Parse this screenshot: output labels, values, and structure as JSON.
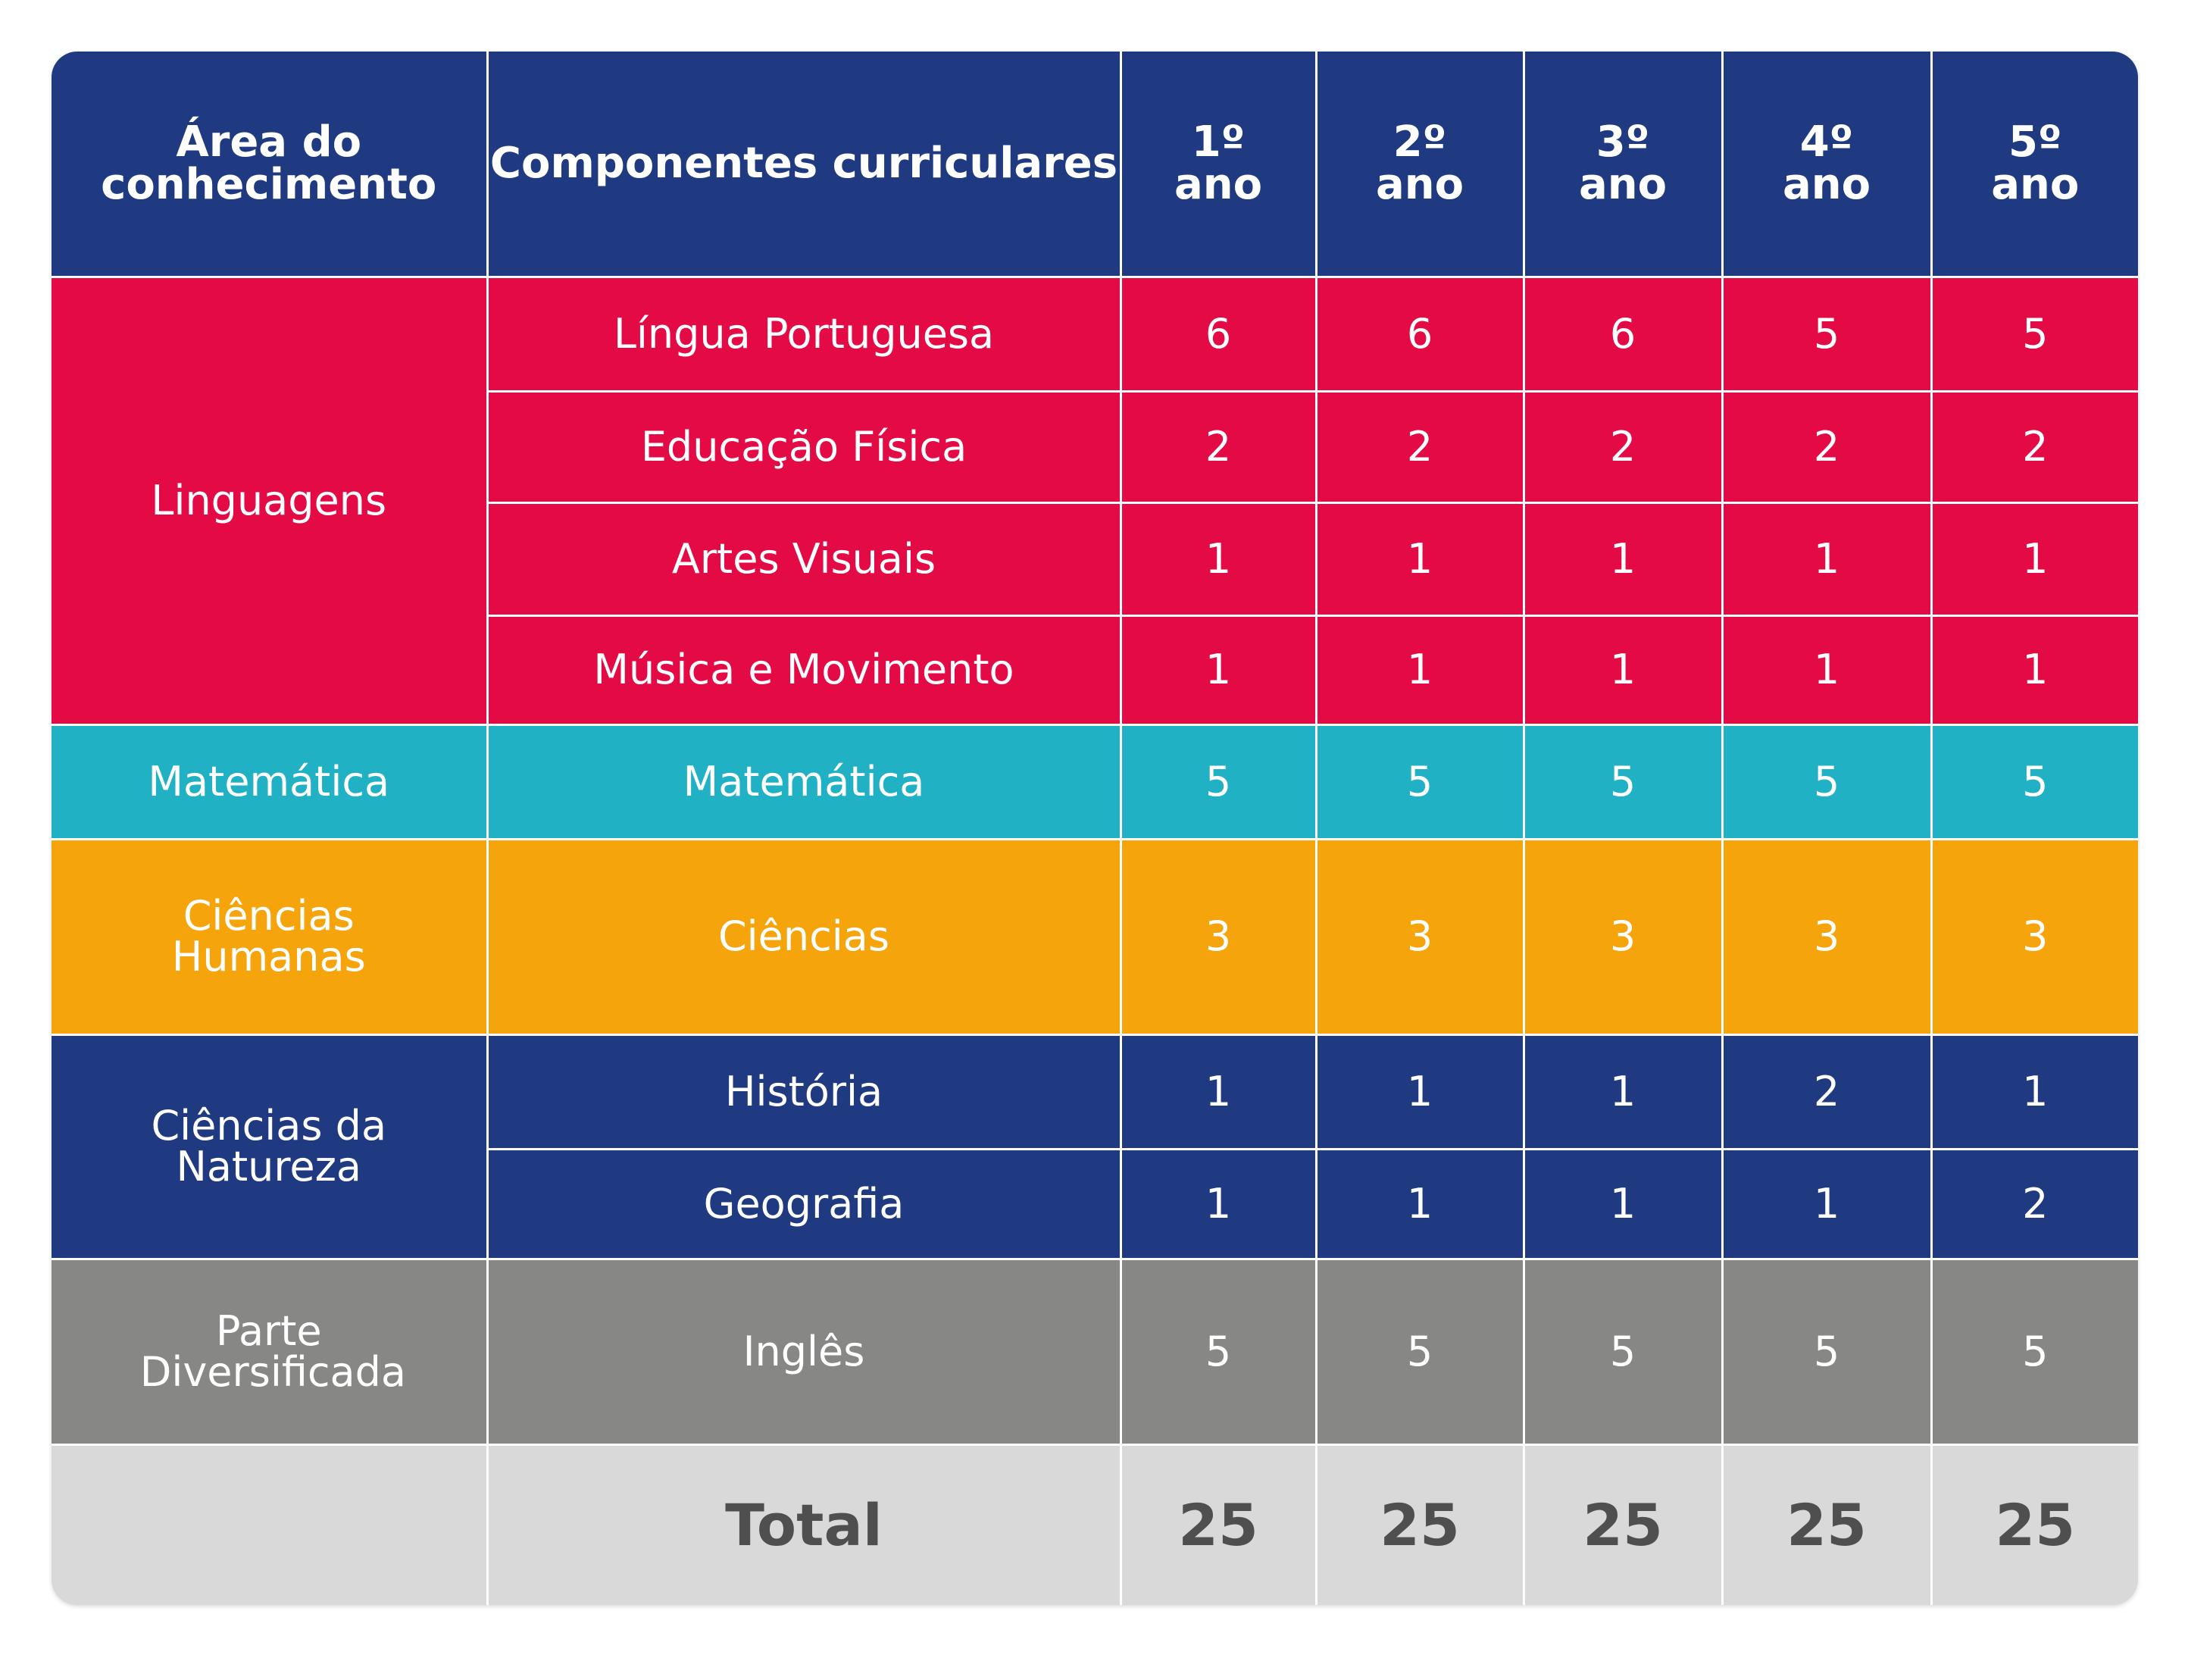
{
  "table": {
    "header": [
      "Área do conhecimento",
      "Componentes curriculares",
      "1º ano",
      "2º ano",
      "3º ano",
      "4º ano",
      "5º ano"
    ],
    "header_color": "#1f3a80",
    "groups": [
      {
        "area": "Linguagens",
        "color": "#e30a45",
        "rows": [
          {
            "component": "Língua Portuguesa",
            "values": [
              6,
              6,
              6,
              5,
              5
            ]
          },
          {
            "component": "Educação Física",
            "values": [
              2,
              2,
              2,
              2,
              2
            ]
          },
          {
            "component": "Artes Visuais",
            "values": [
              1,
              1,
              1,
              1,
              1
            ]
          },
          {
            "component": "Música e Movimento",
            "values": [
              1,
              1,
              1,
              1,
              1
            ]
          }
        ]
      },
      {
        "area": "Matemática",
        "color": "#21b1c5",
        "rows": [
          {
            "component": "Matemática",
            "values": [
              5,
              5,
              5,
              5,
              5
            ]
          }
        ]
      },
      {
        "area": "Ciências Humanas",
        "color": "#f5a40c",
        "rows": [
          {
            "component": "Ciências",
            "values": [
              3,
              3,
              3,
              3,
              3
            ]
          }
        ]
      },
      {
        "area": "Ciências da Natureza",
        "color": "#1f3a80",
        "rows": [
          {
            "component": "História",
            "values": [
              1,
              1,
              1,
              2,
              1
            ]
          },
          {
            "component": "Geografia",
            "values": [
              1,
              1,
              1,
              1,
              2
            ]
          }
        ]
      },
      {
        "area": "Parte Diversificada",
        "color": "#878786",
        "rows": [
          {
            "component": "Inglês",
            "values": [
              5,
              5,
              5,
              5,
              5
            ]
          }
        ]
      }
    ],
    "total": {
      "label": "Total",
      "color": "#d9d9d9",
      "values": [
        25,
        25,
        25,
        25,
        25
      ]
    }
  }
}
